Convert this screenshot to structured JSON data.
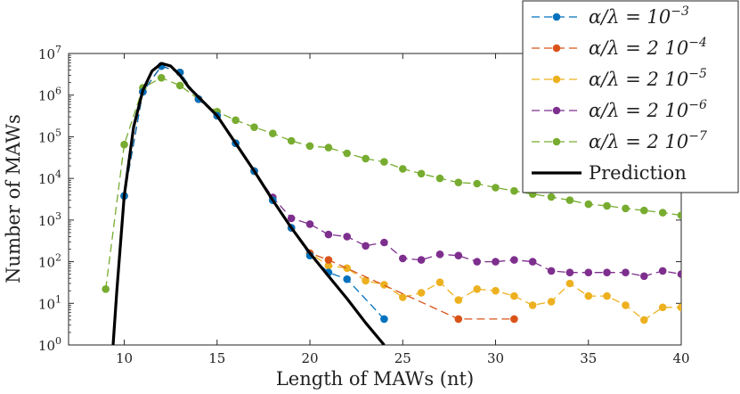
{
  "chart_data": {
    "type": "line",
    "xlabel": "Length of MAWs (nt)",
    "ylabel": "Number of MAWs",
    "xlim": [
      7,
      40
    ],
    "ylim_log10": [
      0,
      7
    ],
    "yscale": "log",
    "x_ticks": [
      10,
      15,
      20,
      25,
      30,
      35,
      40
    ],
    "x_tick_labels": [
      "10",
      "15",
      "20",
      "25",
      "30",
      "35",
      "40"
    ],
    "y_ticks_log10": [
      0,
      1,
      2,
      3,
      4,
      5,
      6,
      7
    ],
    "y_tick_bases": [
      "10",
      "10",
      "10",
      "10",
      "10",
      "10",
      "10",
      "10"
    ],
    "y_tick_exponents": [
      "0",
      "1",
      "2",
      "3",
      "4",
      "5",
      "6",
      "7"
    ],
    "legend_position": "top-right",
    "series": [
      {
        "name": "α/λ = 10^-3",
        "legend_main": "α/λ = 10",
        "legend_sup": "−3",
        "color": "#0072BD",
        "style": "dashed-markers",
        "x": [
          10,
          11,
          12,
          13,
          14,
          15,
          16,
          17,
          18,
          19,
          20,
          21,
          22,
          24
        ],
        "y": [
          3800,
          1200000,
          5000000,
          3500000,
          800000,
          320000,
          70000,
          15000,
          3000,
          650,
          140,
          55,
          38,
          4.2
        ]
      },
      {
        "name": "α/λ = 2 10^-4",
        "legend_main": "α/λ = 2 10",
        "legend_sup": "−4",
        "color": "#D95319",
        "style": "dashed-markers",
        "x": [
          10,
          11,
          12,
          13,
          14,
          15,
          16,
          17,
          18,
          19,
          20,
          21,
          28,
          31
        ],
        "y": [
          3800,
          1200000,
          5000000,
          3500000,
          800000,
          320000,
          70000,
          15000,
          3000,
          650,
          160,
          110,
          4.2,
          4.2
        ]
      },
      {
        "name": "α/λ = 2 10^-5",
        "legend_main": "α/λ = 2 10",
        "legend_sup": "−5",
        "color": "#EDB120",
        "style": "dashed-markers",
        "x": [
          10,
          11,
          12,
          13,
          14,
          15,
          16,
          17,
          18,
          19,
          20,
          21,
          22,
          23,
          24,
          25,
          26,
          27,
          28,
          29,
          30,
          31,
          32,
          33,
          34,
          35,
          36,
          37,
          38,
          39,
          40
        ],
        "y": [
          3800,
          1200000,
          5000000,
          3500000,
          800000,
          320000,
          70000,
          15000,
          3000,
          650,
          160,
          80,
          70,
          35,
          28,
          14,
          18,
          32,
          12,
          22,
          20,
          15,
          9,
          11,
          30,
          15,
          15,
          9,
          4,
          8,
          8
        ]
      },
      {
        "name": "α/λ = 2 10^-6",
        "legend_main": "α/λ = 2 10",
        "legend_sup": "−6",
        "color": "#7E2F8E",
        "style": "dashed-markers",
        "x": [
          10,
          11,
          12,
          13,
          14,
          15,
          16,
          17,
          18,
          19,
          20,
          21,
          22,
          23,
          24,
          25,
          26,
          27,
          28,
          29,
          30,
          31,
          32,
          33,
          34,
          35,
          36,
          37,
          38,
          39,
          40
        ],
        "y": [
          3800,
          1200000,
          5000000,
          3500000,
          800000,
          320000,
          70000,
          15000,
          3500,
          1100,
          800,
          450,
          400,
          240,
          290,
          120,
          110,
          150,
          140,
          100,
          100,
          110,
          100,
          60,
          55,
          55,
          55,
          55,
          45,
          60,
          50
        ]
      },
      {
        "name": "α/λ = 2 10^-7",
        "legend_main": "α/λ = 2 10",
        "legend_sup": "−7",
        "color": "#77AC30",
        "style": "dashed-markers",
        "x": [
          9,
          10,
          11,
          12,
          13,
          14,
          15,
          16,
          17,
          18,
          19,
          20,
          21,
          22,
          23,
          24,
          25,
          26,
          27,
          28,
          29,
          30,
          31,
          32,
          33,
          34,
          35,
          36,
          37,
          38,
          39,
          40
        ],
        "y": [
          22,
          65000,
          1500000,
          2600000,
          1700000,
          800000,
          400000,
          250000,
          170000,
          120000,
          80000,
          60000,
          55000,
          40000,
          30000,
          25000,
          17000,
          13000,
          10000,
          8000,
          7500,
          6000,
          5000,
          4200,
          3600,
          3000,
          2400,
          2200,
          1900,
          1700,
          1500,
          1300
        ]
      },
      {
        "name": "Prediction",
        "legend_main": "Prediction",
        "legend_sup": "",
        "color": "#000000",
        "style": "solid",
        "x": [
          9.4,
          9.6,
          10,
          10.5,
          11,
          11.5,
          12,
          12.5,
          13,
          13.5,
          14,
          15,
          16,
          17,
          18,
          19,
          20,
          21,
          22,
          23,
          24
        ],
        "y": [
          1,
          20,
          3800,
          170000,
          1300000,
          3800000,
          5800000,
          5000000,
          3000000,
          1500000,
          900000,
          320000,
          70000,
          15000,
          3000,
          650,
          160,
          45,
          13,
          3.4,
          1
        ]
      }
    ]
  }
}
